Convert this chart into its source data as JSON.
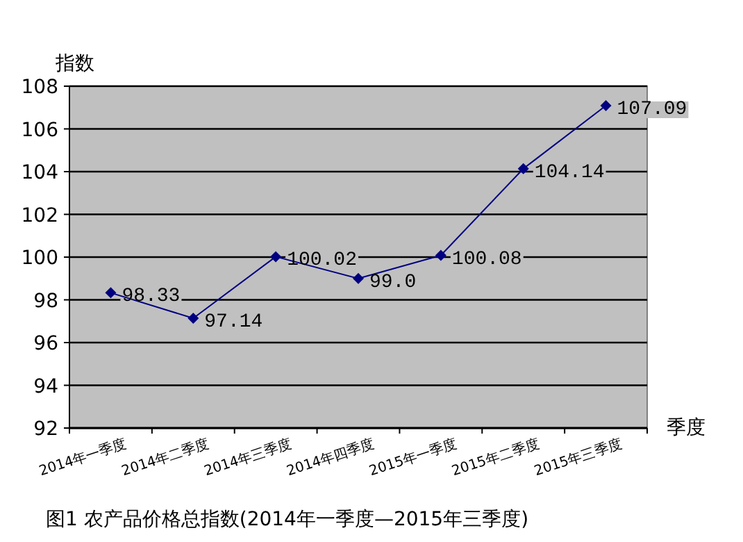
{
  "chart_data": {
    "type": "line",
    "title": "图1 农产品价格总指数(2014年一季度—2015年三季度)",
    "xlabel": "季度",
    "ylabel": "指数",
    "categories": [
      "2014年一季度",
      "2014年二季度",
      "2014年三季度",
      "2014年四季度",
      "2015年一季度",
      "2015年二季度",
      "2015年三季度"
    ],
    "series": [
      {
        "color": "#000080",
        "values": [
          98.33,
          97.14,
          100.02,
          99.0,
          100.08,
          104.14,
          107.09
        ],
        "value_labels": [
          "98.33",
          "97.14",
          "100.02",
          "99.0",
          "100.08",
          "104.14",
          "107.09"
        ]
      }
    ],
    "ylim": [
      92,
      108
    ],
    "yticks": [
      92,
      94,
      96,
      98,
      100,
      102,
      104,
      106,
      108
    ],
    "grid": "y",
    "marker": "diamond",
    "line_style": "solid"
  }
}
